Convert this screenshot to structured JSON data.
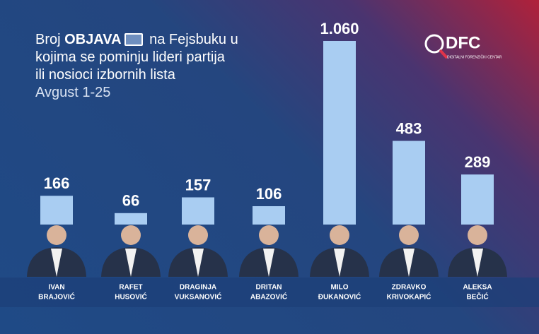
{
  "chart_data": {
    "type": "bar",
    "title": [
      "Broj",
      "OBJAVA",
      "na Fejsbuku u",
      "kojima se pominju lideri partija",
      "ili nosioci izbornih lista"
    ],
    "subtitle": "Avgust 1-25",
    "logo": {
      "name": "DFC",
      "tagline": "DIGITALNI FORENZIČKI CENTAR"
    },
    "categories": [
      [
        "IVAN",
        "BRAJOVIĆ"
      ],
      [
        "RAFET",
        "HUSOVIĆ"
      ],
      [
        "DRAGINJA",
        "VUKSANOVIĆ"
      ],
      [
        "DRITAN",
        "ABAZOVIĆ"
      ],
      [
        "MILO",
        "ĐUKANOVIĆ"
      ],
      [
        "ZDRAVKO",
        "KRIVOKAPIĆ"
      ],
      [
        "ALEKSA",
        "BEČIĆ"
      ]
    ],
    "values": [
      166,
      66,
      157,
      106,
      1060,
      483,
      289
    ],
    "value_labels": [
      "166",
      "66",
      "157",
      "106",
      "1.060",
      "483",
      "289"
    ],
    "color": "#a9cdf2"
  }
}
